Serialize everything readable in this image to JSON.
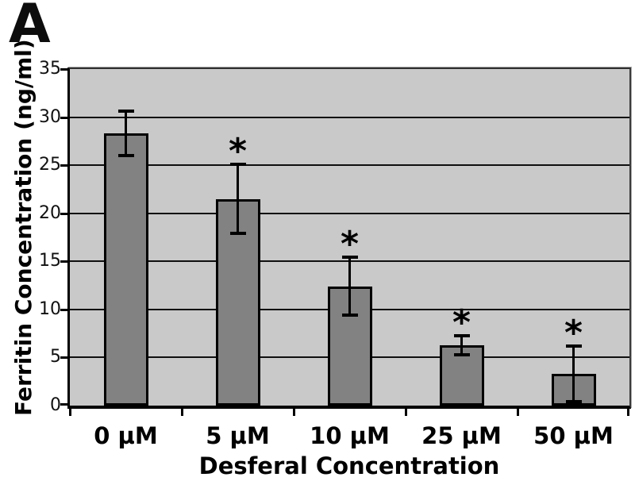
{
  "panel_label": "A",
  "chart_data": {
    "type": "bar",
    "title": "",
    "xlabel": "Desferal Concentration",
    "ylabel": "Ferritin Concentration (ng/ml)",
    "categories": [
      "0 µM",
      "5 µM",
      "10 µM",
      "25 µM",
      "50 µM"
    ],
    "values": [
      28.3,
      21.5,
      12.4,
      6.3,
      3.3
    ],
    "error_bars": [
      2.3,
      3.6,
      3.0,
      1.0,
      2.9
    ],
    "significance_markers": [
      "",
      "*",
      "*",
      "*",
      "*"
    ],
    "ylim": [
      0,
      35
    ],
    "yticks": [
      0,
      5,
      10,
      15,
      20,
      25,
      30,
      35
    ],
    "grid": "horizontal-only",
    "legend": "none",
    "colors": {
      "bar_fill": "#828282",
      "plot_background": "#c9c9c9",
      "line": "#000000",
      "page_background": "#ffffff"
    }
  }
}
